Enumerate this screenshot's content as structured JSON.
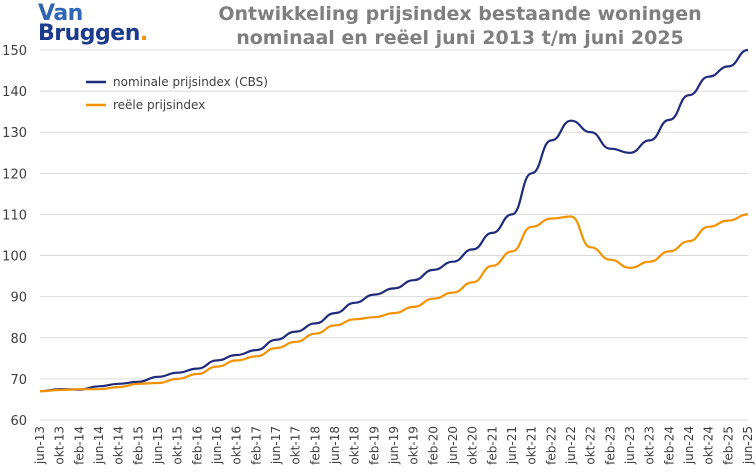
{
  "logo": {
    "line1": "Van",
    "line2": "Bruggen",
    "dot": "."
  },
  "title_line1": "Ontwikkeling prijsindex bestaande woningen",
  "title_line2": "nominaal en reëel juni 2013 t/m juni 2025",
  "colors": {
    "nominal": "#1f2a7a",
    "real": "#f39200",
    "grid": "#d9d9d9",
    "title": "#7f7f7f"
  },
  "chart_data": {
    "type": "line",
    "title": "Ontwikkeling prijsindex bestaande woningen nominaal en reëel juni 2013 t/m juni 2025",
    "xlabel": "",
    "ylabel": "",
    "ylim": [
      60,
      150
    ],
    "yticks": [
      60,
      70,
      80,
      90,
      100,
      110,
      120,
      130,
      140,
      150
    ],
    "grid": true,
    "legend_position": "top-left",
    "x_tick_labels": [
      "jun-13",
      "okt-13",
      "feb-14",
      "jun-14",
      "okt-14",
      "feb-15",
      "jun-15",
      "okt-15",
      "feb-16",
      "jun-16",
      "okt-16",
      "feb-17",
      "jun-17",
      "okt-17",
      "feb-18",
      "jun-18",
      "okt-18",
      "feb-19",
      "jun-19",
      "okt-19",
      "feb-20",
      "jun-20",
      "okt-20",
      "feb-21",
      "jun-21",
      "okt-21",
      "feb-22",
      "jun-22",
      "okt-22",
      "feb-23",
      "jun-23",
      "okt-23",
      "feb-24",
      "jun-24",
      "okt-24",
      "feb-25",
      "jun-25"
    ],
    "series": [
      {
        "name": "nominale prijsindex (CBS)",
        "points": [
          [
            "jun-13",
            67.0
          ],
          [
            "okt-13",
            67.5
          ],
          [
            "feb-14",
            67.4
          ],
          [
            "jun-14",
            68.2
          ],
          [
            "okt-14",
            68.8
          ],
          [
            "feb-15",
            69.3
          ],
          [
            "jun-15",
            70.5
          ],
          [
            "okt-15",
            71.5
          ],
          [
            "feb-16",
            72.5
          ],
          [
            "jun-16",
            74.5
          ],
          [
            "okt-16",
            75.8
          ],
          [
            "feb-17",
            77.0
          ],
          [
            "jun-17",
            79.5
          ],
          [
            "okt-17",
            81.5
          ],
          [
            "feb-18",
            83.5
          ],
          [
            "jun-18",
            86.0
          ],
          [
            "okt-18",
            88.5
          ],
          [
            "feb-19",
            90.5
          ],
          [
            "jun-19",
            92.0
          ],
          [
            "okt-19",
            94.0
          ],
          [
            "feb-20",
            96.5
          ],
          [
            "jun-20",
            98.5
          ],
          [
            "okt-20",
            101.5
          ],
          [
            "feb-21",
            105.5
          ],
          [
            "jun-21",
            110.0
          ],
          [
            "okt-21",
            120.0
          ],
          [
            "feb-22",
            128.0
          ],
          [
            "jun-22",
            132.8
          ],
          [
            "okt-22",
            130.0
          ],
          [
            "feb-23",
            126.0
          ],
          [
            "jun-23",
            125.0
          ],
          [
            "okt-23",
            128.0
          ],
          [
            "feb-24",
            133.0
          ],
          [
            "jun-24",
            139.0
          ],
          [
            "okt-24",
            143.5
          ],
          [
            "feb-25",
            146.0
          ],
          [
            "jun-25",
            150.0
          ]
        ]
      },
      {
        "name": "reële prijsindex",
        "points": [
          [
            "jun-13",
            67.0
          ],
          [
            "okt-13",
            67.3
          ],
          [
            "feb-14",
            67.5
          ],
          [
            "jun-14",
            67.5
          ],
          [
            "okt-14",
            68.0
          ],
          [
            "feb-15",
            68.8
          ],
          [
            "jun-15",
            69.0
          ],
          [
            "okt-15",
            70.0
          ],
          [
            "feb-16",
            71.2
          ],
          [
            "jun-16",
            73.0
          ],
          [
            "okt-16",
            74.5
          ],
          [
            "feb-17",
            75.5
          ],
          [
            "jun-17",
            77.5
          ],
          [
            "okt-17",
            79.0
          ],
          [
            "feb-18",
            81.0
          ],
          [
            "jun-18",
            83.0
          ],
          [
            "okt-18",
            84.5
          ],
          [
            "feb-19",
            85.0
          ],
          [
            "jun-19",
            86.0
          ],
          [
            "okt-19",
            87.5
          ],
          [
            "feb-20",
            89.5
          ],
          [
            "jun-20",
            91.0
          ],
          [
            "okt-20",
            93.5
          ],
          [
            "feb-21",
            97.5
          ],
          [
            "jun-21",
            101.0
          ],
          [
            "okt-21",
            107.0
          ],
          [
            "feb-22",
            109.0
          ],
          [
            "jun-22",
            109.5
          ],
          [
            "okt-22",
            102.0
          ],
          [
            "feb-23",
            99.0
          ],
          [
            "jun-23",
            97.0
          ],
          [
            "okt-23",
            98.5
          ],
          [
            "feb-24",
            101.0
          ],
          [
            "jun-24",
            103.5
          ],
          [
            "okt-24",
            107.0
          ],
          [
            "feb-25",
            108.5
          ],
          [
            "jun-25",
            110.0
          ]
        ]
      }
    ]
  }
}
